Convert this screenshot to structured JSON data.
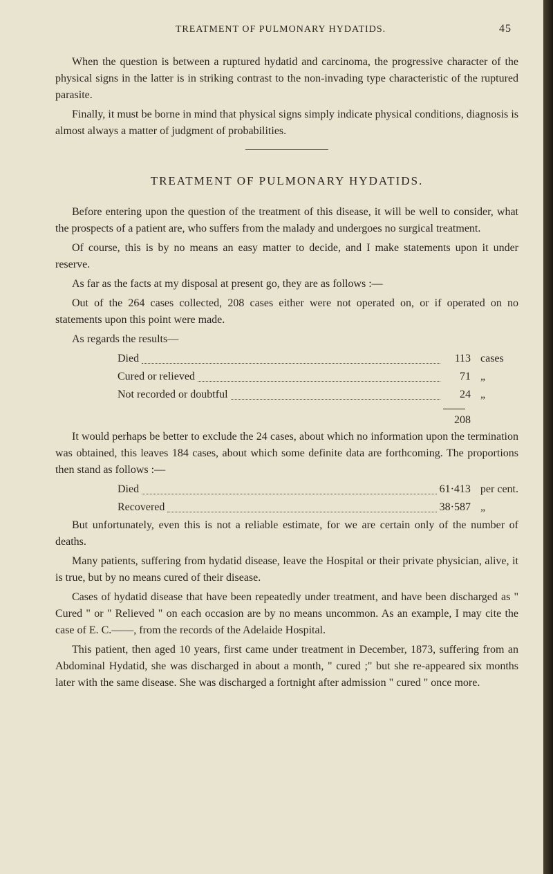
{
  "page_number": "45",
  "running_head": "TREATMENT OF PULMONARY HYDATIDS.",
  "para1": "When the question is between a ruptured hydatid and carcinoma, the progressive character of the physical signs in the latter is in striking contrast to the non-invading type characteristic of the ruptured parasite.",
  "para2": "Finally, it must be borne in mind that physical signs simply indicate physical conditions, diagnosis is almost always a matter of judgment of probabilities.",
  "section_title": "TREATMENT OF PULMONARY HYDATIDS.",
  "para3": "Before entering upon the question of the treatment of this disease, it will be well to consider, what the prospects of a patient are, who suffers from the malady and undergoes no surgical treatment.",
  "para4": "Of course, this is by no means an easy matter to decide, and I make statements upon it under reserve.",
  "para5": "As far as the facts at my disposal at present go, they are as follows :—",
  "para6": "Out of the 264 cases collected, 208 cases either were not operated on, or if operated on no statements upon this point were made.",
  "para7": "As regards the results—",
  "stats1": [
    {
      "label": "Died",
      "value": "113",
      "suffix": "cases"
    },
    {
      "label": "Cured or relieved",
      "value": "71",
      "suffix": "„"
    },
    {
      "label": "Not recorded or doubtful",
      "value": "24",
      "suffix": "„"
    }
  ],
  "stats1_total": "208",
  "para8": "It would perhaps be better to exclude the 24 cases, about which no information upon the termination was obtained, this leaves 184 cases, about which some definite data are forthcoming. The proportions then stand as follows :—",
  "stats2": [
    {
      "label": "Died",
      "value": "61·413",
      "suffix": "per cent."
    },
    {
      "label": "Recovered",
      "value": "38·587",
      "suffix": "„"
    }
  ],
  "para9": "But unfortunately, even this is not a reliable estimate, for we are certain only of the number of deaths.",
  "para10": "Many patients, suffering from hydatid disease, leave the Hospital or their private physician, alive, it is true, but by no means cured of their disease.",
  "para11": "Cases of hydatid disease that have been repeatedly under treatment, and have been discharged as \" Cured \" or \" Relieved \" on each occasion are by no means uncommon. As an example, I may cite the case of E. C.——, from the records of the Adelaide Hospital.",
  "para12": "This patient, then aged 10 years, first came under treatment in December, 1873, suffering from an Abdominal Hydatid, she was discharged in about a month, \" cured ;\" but she re-appeared six months later with the same disease. She was discharged a fortnight after admission \" cured \" once more."
}
